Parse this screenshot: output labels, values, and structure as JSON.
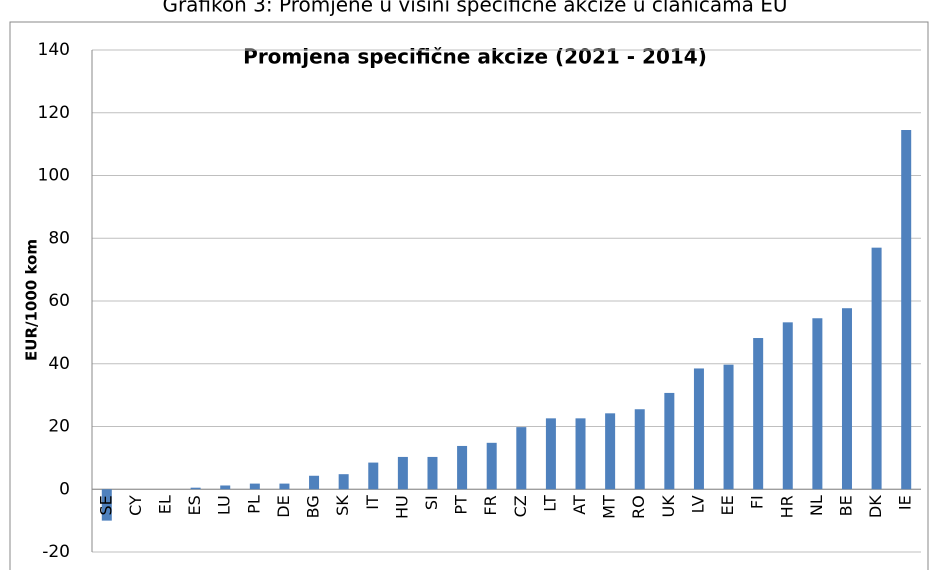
{
  "caption": "Grafikon 3: Promjene u visini specifične akcize u članicama EU",
  "chart_data": {
    "type": "bar",
    "title": "Promjena specifične akcize (2021 - 2014)",
    "y_label": "EUR/1000 kom",
    "categories": [
      "SE",
      "CY",
      "EL",
      "ES",
      "LU",
      "PL",
      "DE",
      "BG",
      "SK",
      "IT",
      "HU",
      "SI",
      "PT",
      "FR",
      "CZ",
      "LT",
      "AT",
      "MT",
      "RO",
      "UK",
      "LV",
      "EE",
      "FI",
      "HR",
      "NL",
      "BE",
      "DK",
      "IE"
    ],
    "values": [
      -10,
      0,
      0,
      0.5,
      1.2,
      1.8,
      1.8,
      4.3,
      4.8,
      8.5,
      10.3,
      10.3,
      13.8,
      14.8,
      19.8,
      22.6,
      22.6,
      24.2,
      25.5,
      30.7,
      38.5,
      39.7,
      48.2,
      53.2,
      54.5,
      57.7,
      77,
      114.5
    ],
    "color": "#4f81bd",
    "ylim": [
      -20,
      140
    ],
    "yticks": [
      -20,
      0,
      20,
      40,
      60,
      80,
      100,
      120,
      140
    ],
    "grid": true
  }
}
